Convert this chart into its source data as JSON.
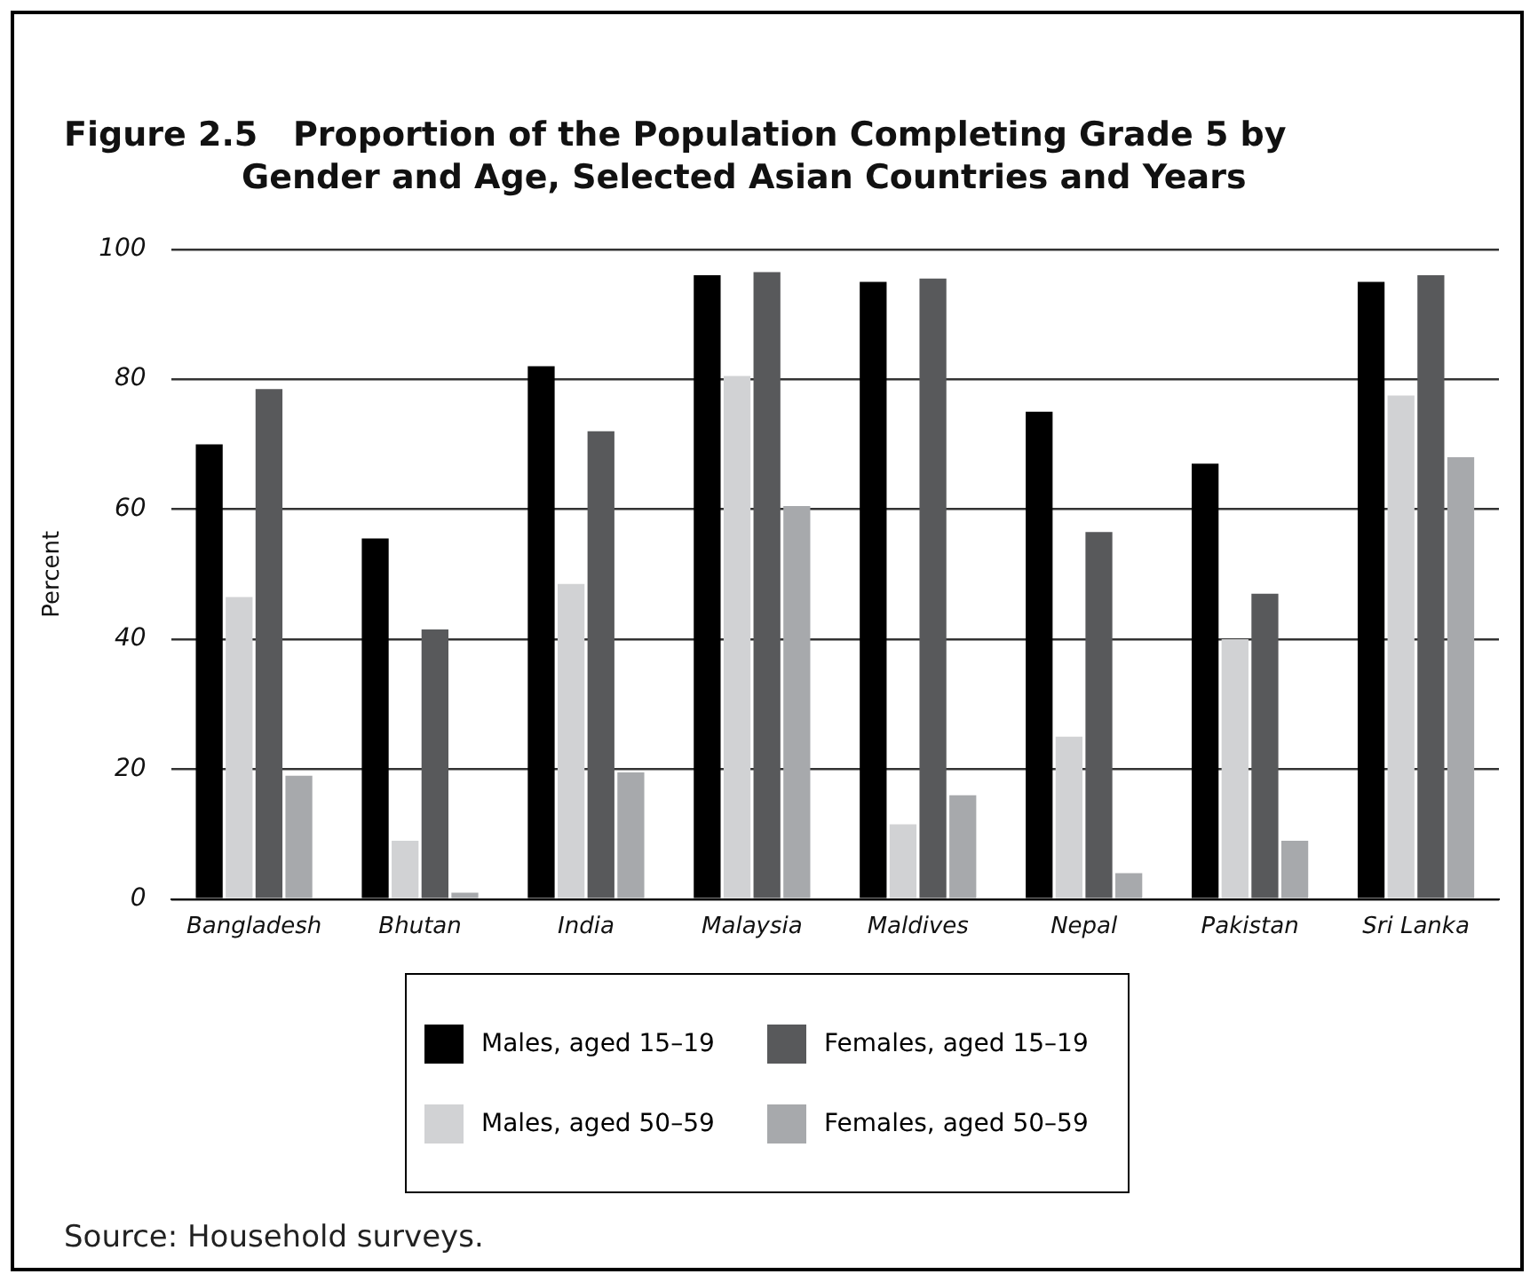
{
  "chart_data": {
    "type": "bar",
    "title": "Figure 2.5   Proportion of the Population Completing Grade 5 by Gender and Age, Selected Asian Countries and Years",
    "ylabel": "Percent",
    "categories": [
      "Bangladesh",
      "Bhutan",
      "India",
      "Malaysia",
      "Maldives",
      "Nepal",
      "Pakistan",
      "Sri Lanka"
    ],
    "series": [
      {
        "name": "Males, aged 15–19",
        "color": "#000000",
        "values": [
          70,
          55.5,
          82,
          96,
          95,
          75,
          67,
          95
        ]
      },
      {
        "name": "Males, aged 50–59",
        "color": "#d1d2d4",
        "values": [
          46.5,
          9,
          48.5,
          80.5,
          11.5,
          25,
          40,
          77.5
        ]
      },
      {
        "name": "Females, aged 15–19",
        "color": "#58595b",
        "values": [
          78.5,
          41.5,
          72,
          96.5,
          95.5,
          56.5,
          47,
          96
        ]
      },
      {
        "name": "Females, aged 50–59",
        "color": "#a7a9ac",
        "values": [
          19,
          1,
          19.5,
          60.5,
          16,
          4,
          9,
          68
        ]
      }
    ],
    "ylim": [
      0,
      100
    ],
    "yticks": [
      0,
      20,
      40,
      60,
      80,
      100
    ],
    "grid": "y",
    "legend": "bottom",
    "annotations": [
      "Source: Household surveys."
    ]
  }
}
